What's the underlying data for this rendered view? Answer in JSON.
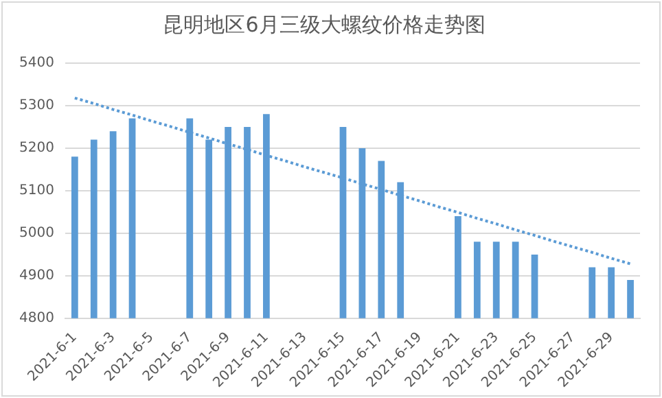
{
  "chart_data": {
    "type": "bar",
    "title": "昆明地区6月三级大螺纹价格走势图",
    "categories": [
      "2021-6-1",
      null,
      "2021-6-3",
      null,
      "2021-6-5",
      null,
      "2021-6-7",
      null,
      "2021-6-9",
      null,
      "2021-6-11",
      null,
      "2021-6-13",
      null,
      "2021-6-15",
      null,
      "2021-6-17",
      null,
      "2021-6-19",
      null,
      "2021-6-21",
      null,
      "2021-6-23",
      null,
      "2021-6-25",
      null,
      "2021-6-27",
      null,
      "2021-6-29",
      null
    ],
    "series": [
      {
        "color": "#5b9bd5",
        "values": [
          5180,
          5220,
          5240,
          5270,
          null,
          null,
          5270,
          5220,
          5250,
          5250,
          5280,
          null,
          null,
          null,
          5250,
          5200,
          5170,
          5120,
          null,
          null,
          5040,
          4980,
          4980,
          4980,
          4950,
          null,
          null,
          4920,
          4920,
          4890
        ]
      },
      {
        "type": "line",
        "color": "#5b9bd5",
        "line_style": "dotted",
        "marker": "none",
        "values": [
          5318,
          5305,
          5291,
          5278,
          5264,
          5251,
          5237,
          5224,
          5210,
          5197,
          5183,
          5170,
          5156,
          5143,
          5130,
          5116,
          5103,
          5089,
          5076,
          5062,
          5049,
          5035,
          5022,
          5008,
          4995,
          4981,
          4968,
          4955,
          4941,
          4928
        ]
      }
    ],
    "ylim": [
      4800,
      5400
    ],
    "yticks": [
      4800,
      4900,
      5000,
      5100,
      5200,
      5300,
      5400
    ],
    "grid": "y",
    "legend": false
  }
}
